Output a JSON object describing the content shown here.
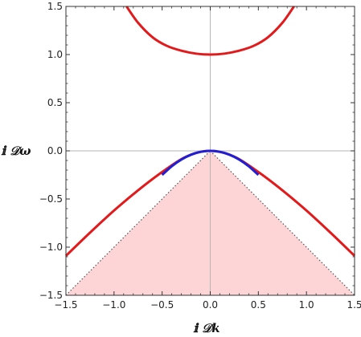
{
  "chart_data": {
    "type": "line",
    "title": "",
    "xlabel": "𝕚 𝒟k",
    "ylabel": "𝕚 𝒟ω",
    "xlim": [
      -1.5,
      1.5
    ],
    "ylim": [
      -1.5,
      1.5
    ],
    "x_ticks": [
      -1.5,
      -1.0,
      -0.5,
      0.0,
      0.5,
      1.0,
      1.5
    ],
    "x_tick_labels": [
      "−1.5",
      "−1.0",
      "−0.5",
      "0.0",
      "0.5",
      "1.0",
      "1.5"
    ],
    "y_ticks": [
      -1.5,
      -1.0,
      -0.5,
      0.0,
      0.5,
      1.0,
      1.5
    ],
    "y_tick_labels": [
      "−1.5",
      "−1.0",
      "−0.5",
      "0.0",
      "0.5",
      "1.0",
      "1.5"
    ],
    "grid": false,
    "zero_axes": true,
    "series": [
      {
        "color": "#e31a1c",
        "x": [
          -0.87,
          -0.75,
          -0.6,
          -0.45,
          -0.3,
          -0.15,
          0.0,
          0.15,
          0.3,
          0.45,
          0.6,
          0.75,
          0.87
        ],
        "y": [
          1.5,
          1.33,
          1.18,
          1.09,
          1.04,
          1.01,
          1.0,
          1.01,
          1.04,
          1.09,
          1.18,
          1.33,
          1.5
        ]
      },
      {
        "color": "#e31a1c",
        "x": [
          -1.5,
          -1.25,
          -1.0,
          -0.75,
          -0.5,
          -0.25,
          0.0,
          0.25,
          0.5,
          0.75,
          1.0,
          1.25,
          1.5
        ],
        "y": [
          -1.09,
          -0.85,
          -0.62,
          -0.41,
          -0.22,
          -0.06,
          0.0,
          -0.06,
          -0.22,
          -0.41,
          -0.62,
          -0.85,
          -1.09
        ]
      },
      {
        "color": "#1f1fd6",
        "x": [
          -0.5,
          -0.4,
          -0.3,
          -0.2,
          -0.1,
          0.0,
          0.1,
          0.2,
          0.3,
          0.4,
          0.5
        ],
        "y": [
          -0.25,
          -0.16,
          -0.09,
          -0.04,
          -0.01,
          0.0,
          -0.01,
          -0.04,
          -0.09,
          -0.16,
          -0.25
        ]
      }
    ],
    "shaded_region": {
      "vertices": [
        [
          -1.5,
          -1.5
        ],
        [
          0.0,
          0.0
        ],
        [
          1.5,
          -1.5
        ]
      ],
      "fill": "#fdd5d6",
      "edge_style": "dotted"
    }
  }
}
